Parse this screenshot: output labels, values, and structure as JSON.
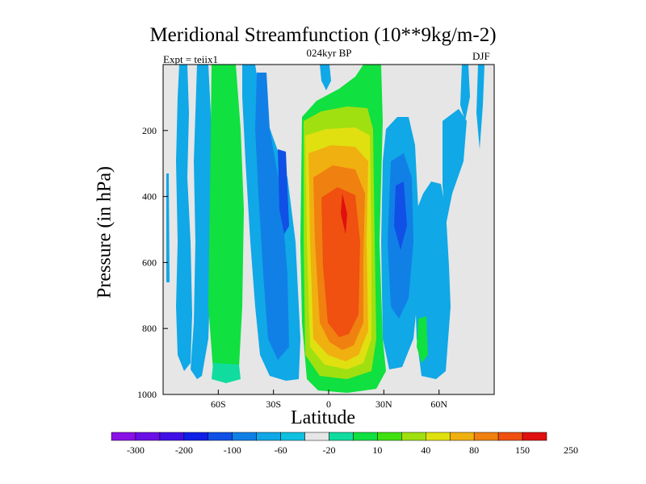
{
  "chart_data": {
    "type": "contour",
    "title": "Meridional Streamfunction (10**9kg/m-2)",
    "left_label": "Expt = teiix1",
    "center_label": "024kyr BP",
    "right_label": "DJF",
    "xlabel": "Latitude",
    "ylabel": "Pressure (in hPa)",
    "xlim": [
      -90,
      90
    ],
    "ylim": [
      1000,
      0
    ],
    "xticks": [
      {
        "value": -60,
        "label": "60S"
      },
      {
        "value": -30,
        "label": "30S"
      },
      {
        "value": 0,
        "label": "0"
      },
      {
        "value": 30,
        "label": "30N"
      },
      {
        "value": 60,
        "label": "60N"
      }
    ],
    "yticks": [
      {
        "value": 200,
        "label": "200"
      },
      {
        "value": 400,
        "label": "400"
      },
      {
        "value": 600,
        "label": "600"
      },
      {
        "value": 800,
        "label": "800"
      },
      {
        "value": 1000,
        "label": "1000"
      }
    ],
    "colorbar": {
      "colors": [
        "#8a10e6",
        "#6a10e6",
        "#4010e6",
        "#1020e6",
        "#1050e6",
        "#1080e6",
        "#10a8e6",
        "#10c0e0",
        "#e6e6e6",
        "#10dca0",
        "#10e040",
        "#40e010",
        "#a0e010",
        "#e0e010",
        "#f0b010",
        "#f08010",
        "#f05010",
        "#e01010"
      ],
      "labels": [
        "-300",
        "-200",
        "-100",
        "-60",
        "-20",
        "10",
        "40",
        "80",
        "150",
        "250"
      ]
    },
    "features": [
      {
        "lat_range": [
          -80,
          -60
        ],
        "p_range": [
          0,
          960
        ],
        "sign": "negative",
        "peak": -30
      },
      {
        "lat_range": [
          -60,
          -45
        ],
        "p_range": [
          0,
          980
        ],
        "sign": "positive",
        "peak": 40
      },
      {
        "lat_range": [
          -45,
          -25
        ],
        "p_range": [
          0,
          990
        ],
        "sign": "negative",
        "peak": -60
      },
      {
        "lat_range": [
          -12,
          25
        ],
        "p_range": [
          0,
          995
        ],
        "sign": "positive",
        "peak": 250
      },
      {
        "lat_range": [
          28,
          45
        ],
        "p_range": [
          0,
          980
        ],
        "sign": "negative",
        "peak": -60
      },
      {
        "lat_range": [
          48,
          68
        ],
        "p_range": [
          200,
          970
        ],
        "sign": "mixed",
        "peak": 40
      }
    ]
  }
}
